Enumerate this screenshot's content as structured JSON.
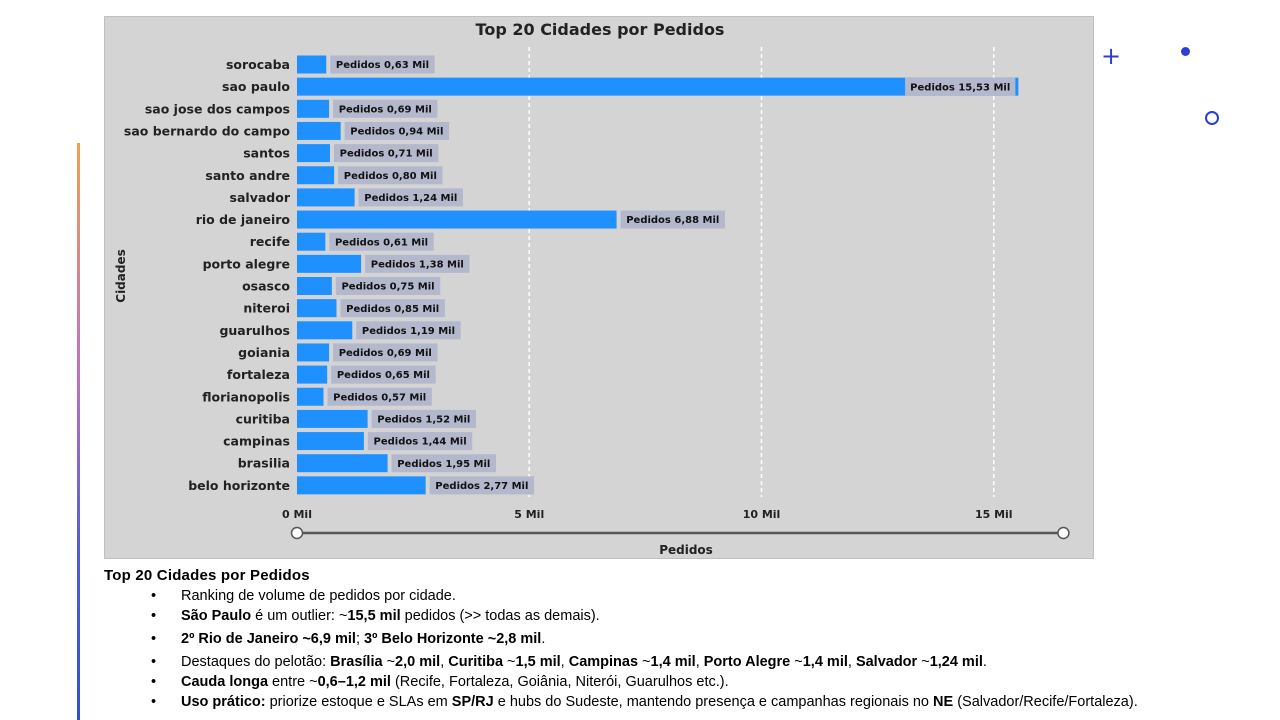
{
  "chart_data": {
    "type": "bar",
    "orientation": "horizontal",
    "title": "Top 20 Cidades por Pedidos",
    "xlabel": "Pedidos",
    "ylabel": "Cidades",
    "xlim": [
      0,
      16.5
    ],
    "xticks": [
      {
        "value": 0,
        "label": "0 Mil"
      },
      {
        "value": 5,
        "label": "5 Mil"
      },
      {
        "value": 10,
        "label": "10 Mil"
      },
      {
        "value": 15,
        "label": "15 Mil"
      }
    ],
    "grid": "vertical dashed",
    "bar_color": "#1e90ff",
    "categories": [
      "sorocaba",
      "sao paulo",
      "sao jose dos campos",
      "sao bernardo do campo",
      "santos",
      "santo andre",
      "salvador",
      "rio de janeiro",
      "recife",
      "porto alegre",
      "osasco",
      "niteroi",
      "guarulhos",
      "goiania",
      "fortaleza",
      "florianopolis",
      "curitiba",
      "campinas",
      "brasilia",
      "belo horizonte"
    ],
    "values": [
      0.63,
      15.53,
      0.69,
      0.94,
      0.71,
      0.8,
      1.24,
      6.88,
      0.61,
      1.38,
      0.75,
      0.85,
      1.19,
      0.69,
      0.65,
      0.57,
      1.52,
      1.44,
      1.95,
      2.77
    ],
    "data_labels": [
      "Pedidos 0,63 Mil",
      "Pedidos 15,53 Mil",
      "Pedidos 0,69 Mil",
      "Pedidos 0,94 Mil",
      "Pedidos 0,71 Mil",
      "Pedidos 0,80 Mil",
      "Pedidos 1,24 Mil",
      "Pedidos 6,88 Mil",
      "Pedidos 0,61 Mil",
      "Pedidos 1,38 Mil",
      "Pedidos 0,75 Mil",
      "Pedidos 0,85 Mil",
      "Pedidos 1,19 Mil",
      "Pedidos 0,69 Mil",
      "Pedidos 0,65 Mil",
      "Pedidos 0,57 Mil",
      "Pedidos 1,52 Mil",
      "Pedidos 1,44 Mil",
      "Pedidos 1,95 Mil",
      "Pedidos 2,77 Mil"
    ]
  },
  "notes": {
    "title": "Top 20 Cidades por Pedidos",
    "bullet_char": "•",
    "items": [
      [
        {
          "t": "Ranking de volume de pedidos por cidade.",
          "b": false
        }
      ],
      [
        {
          "t": "São Paulo",
          "b": true
        },
        {
          "t": " é um outlier: ~",
          "b": false
        },
        {
          "t": "15,5 mil",
          "b": true
        },
        {
          "t": " pedidos (>> todas as demais).",
          "b": false
        }
      ],
      [
        {
          "t": "2º Rio de Janeiro ~6,9 mil",
          "b": true
        },
        {
          "t": "; ",
          "b": false
        },
        {
          "t": "3º Belo Horizonte ~2,8 mil",
          "b": true
        },
        {
          "t": ".",
          "b": false
        }
      ],
      [
        {
          "t": "Destaques do pelotão: ",
          "b": false
        },
        {
          "t": "Brasília",
          "b": true
        },
        {
          "t": " ~",
          "b": false
        },
        {
          "t": "2,0 mil",
          "b": true
        },
        {
          "t": ", ",
          "b": false
        },
        {
          "t": "Curitiba",
          "b": true
        },
        {
          "t": " ~",
          "b": false
        },
        {
          "t": "1,5 mil",
          "b": true
        },
        {
          "t": ", ",
          "b": false
        },
        {
          "t": "Campinas",
          "b": true
        },
        {
          "t": " ~",
          "b": false
        },
        {
          "t": "1,4 mil",
          "b": true
        },
        {
          "t": ", ",
          "b": false
        },
        {
          "t": "Porto Alegre",
          "b": true
        },
        {
          "t": " ~",
          "b": false
        },
        {
          "t": "1,4 mil",
          "b": true
        },
        {
          "t": ", ",
          "b": false
        },
        {
          "t": "Salvador",
          "b": true
        },
        {
          "t": " ~",
          "b": false
        },
        {
          "t": "1,24 mil",
          "b": true
        },
        {
          "t": ".",
          "b": false
        }
      ],
      [
        {
          "t": "Cauda longa",
          "b": true
        },
        {
          "t": " entre ~",
          "b": false
        },
        {
          "t": "0,6–1,2 mil",
          "b": true
        },
        {
          "t": " (Recife, Fortaleza, Goiânia, Niterói, Guarulhos etc.).",
          "b": false
        }
      ],
      [
        {
          "t": "Uso prático:",
          "b": true
        },
        {
          "t": " priorize estoque e SLAs em ",
          "b": false
        },
        {
          "t": "SP/RJ",
          "b": true
        },
        {
          "t": " e hubs do Sudeste, mantendo presença e campanhas regionais no ",
          "b": false
        },
        {
          "t": "NE",
          "b": true
        },
        {
          "t": " (Salvador/Recife/Fortaleza).",
          "b": false
        }
      ]
    ]
  },
  "decor": {
    "plus": "+",
    "accent_color": "#2b3fd6"
  }
}
